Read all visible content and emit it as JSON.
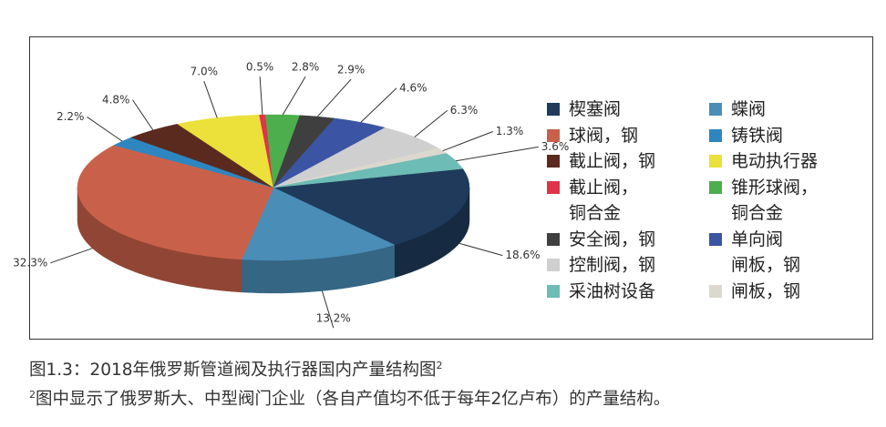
{
  "chart_data": {
    "type": "pie3d",
    "series": [
      {
        "name": "楔塞阀",
        "color": "#1f3a5a"
      },
      {
        "name": "蝶阀",
        "color": "#4a8db7"
      },
      {
        "name": "球阀，钢",
        "color": "#c9614a"
      },
      {
        "name": "铸铁阀",
        "color": "#2e86c1"
      },
      {
        "name": "截止阀，钢",
        "color": "#5a2a1e"
      },
      {
        "name": "电动执行器",
        "color": "#ece03a"
      },
      {
        "name": "截止阀，\n铜合金",
        "color": "#e0344a"
      },
      {
        "name": "锥形球阀，\n铜合金",
        "color": "#4cae4c"
      },
      {
        "name": "安全阀，钢",
        "color": "#3f3f3f"
      },
      {
        "name": "单向阀\n闸板，钢",
        "color": "#3b54a3"
      },
      {
        "name": "控制阀，钢",
        "color": "#cfcfcf"
      },
      {
        "name": "闸板，钢",
        "color": "#dcd8cf"
      },
      {
        "name": "采油树设备",
        "color": "#6dbcb5"
      }
    ],
    "values": [
      18.6,
      13.2,
      32.3,
      2.2,
      4.8,
      7.0,
      0.5,
      2.8,
      2.9,
      4.6,
      6.3,
      1.3,
      3.6
    ],
    "value_labels": [
      "18.6%",
      "13.2%",
      "32.3%",
      "2.2%",
      "4.8%",
      "7.0%",
      "0.5%",
      "2.8%",
      "2.9%",
      "4.6%",
      "6.3%",
      "1.3%",
      "3.6%"
    ]
  },
  "caption": {
    "title": "图1.3：2018年俄罗斯管道阀及执行器国内产量结构图",
    "title_sup": "2",
    "footnote_mark": "2",
    "footnote": "图中显示了俄罗斯大、中型阀门企业（各自产值均不低于每年2亿卢布）的产量结构。"
  }
}
